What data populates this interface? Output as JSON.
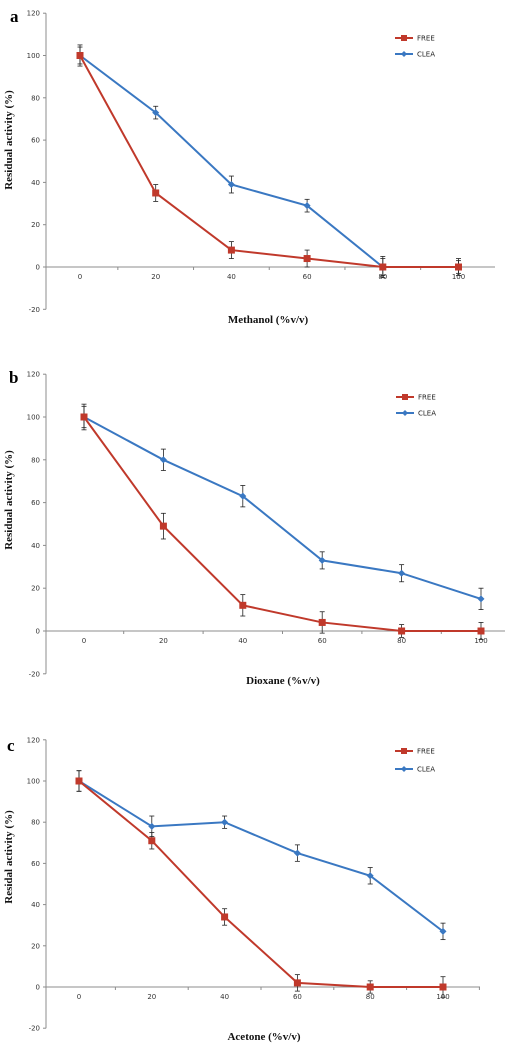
{
  "colors": {
    "FREE": "#C0392B",
    "CLEA": "#3A78C2",
    "axis": "#8c8c8c"
  },
  "chart_data": [
    {
      "type": "line",
      "panel_label": "a",
      "xlabel": "Methanol (%v/v)",
      "ylabel": "Residual activity (%)",
      "x": [
        0,
        20,
        40,
        60,
        80,
        100
      ],
      "xticks": [
        "0",
        "20",
        "40",
        "60",
        "80",
        "100"
      ],
      "yticks": [
        "-20",
        "0",
        "20",
        "40",
        "60",
        "80",
        "100",
        "120"
      ],
      "ylim": [
        -20,
        120
      ],
      "legend_position": "top-right",
      "series": [
        {
          "name": "FREE",
          "values": [
            100,
            35,
            8,
            4,
            0,
            0
          ],
          "errors": [
            5,
            4,
            4,
            4,
            5,
            4
          ]
        },
        {
          "name": "CLEA",
          "values": [
            100,
            73,
            39,
            29,
            0,
            0
          ],
          "errors": [
            4,
            3,
            4,
            3,
            4,
            3
          ]
        }
      ]
    },
    {
      "type": "line",
      "panel_label": "b",
      "xlabel": "Dioxane (%v/v)",
      "ylabel": "Residual activity (%)",
      "x": [
        0,
        20,
        40,
        60,
        80,
        100
      ],
      "xticks": [
        "0",
        "20",
        "40",
        "60",
        "80",
        "100"
      ],
      "yticks": [
        "-20",
        "0",
        "20",
        "40",
        "60",
        "80",
        "100",
        "120"
      ],
      "ylim": [
        -20,
        120
      ],
      "legend_position": "top-right",
      "series": [
        {
          "name": "FREE",
          "values": [
            100,
            49,
            12,
            4,
            0,
            0
          ],
          "errors": [
            6,
            6,
            5,
            5,
            3,
            4
          ]
        },
        {
          "name": "CLEA",
          "values": [
            100,
            80,
            63,
            33,
            27,
            15
          ],
          "errors": [
            5,
            5,
            5,
            4,
            4,
            5
          ]
        }
      ]
    },
    {
      "type": "line",
      "panel_label": "c",
      "xlabel": "Acetone (%v/v)",
      "ylabel": "Residal activity (%)",
      "x": [
        0,
        20,
        40,
        60,
        80,
        100
      ],
      "xticks": [
        "0",
        "20",
        "40",
        "60",
        "80",
        "100"
      ],
      "yticks": [
        "-20",
        "0",
        "20",
        "40",
        "60",
        "80",
        "100",
        "120"
      ],
      "ylim": [
        -20,
        120
      ],
      "legend_position": "top-right",
      "series": [
        {
          "name": "FREE",
          "values": [
            100,
            71,
            34,
            2,
            0,
            0
          ],
          "errors": [
            5,
            4,
            4,
            4,
            3,
            5
          ]
        },
        {
          "name": "CLEA",
          "values": [
            100,
            78,
            80,
            65,
            54,
            27
          ],
          "errors": [
            5,
            5,
            3,
            4,
            4,
            4
          ]
        }
      ]
    }
  ]
}
